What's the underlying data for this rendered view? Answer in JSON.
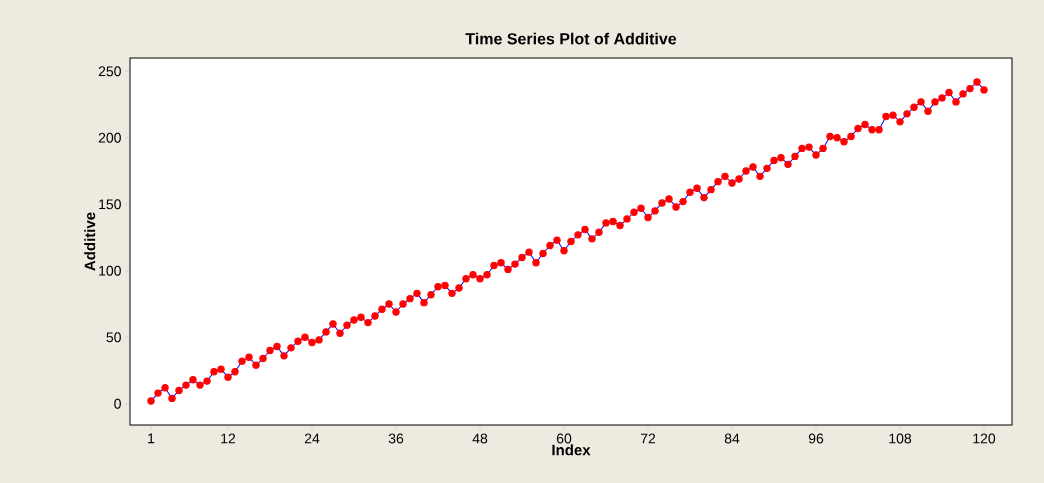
{
  "chart_data": {
    "type": "line",
    "title": "Time Series Plot of Additive",
    "xlabel": "Index",
    "ylabel": "Additive",
    "x": [
      1,
      2,
      3,
      4,
      5,
      6,
      7,
      8,
      9,
      10,
      11,
      12,
      13,
      14,
      15,
      16,
      17,
      18,
      19,
      20,
      21,
      22,
      23,
      24,
      25,
      26,
      27,
      28,
      29,
      30,
      31,
      32,
      33,
      34,
      35,
      36,
      37,
      38,
      39,
      40,
      41,
      42,
      43,
      44,
      45,
      46,
      47,
      48,
      49,
      50,
      51,
      52,
      53,
      54,
      55,
      56,
      57,
      58,
      59,
      60,
      61,
      62,
      63,
      64,
      65,
      66,
      67,
      68,
      69,
      70,
      71,
      72,
      73,
      74,
      75,
      76,
      77,
      78,
      79,
      80,
      81,
      82,
      83,
      84,
      85,
      86,
      87,
      88,
      89,
      90,
      91,
      92,
      93,
      94,
      95,
      96,
      97,
      98,
      99,
      100,
      101,
      102,
      103,
      104,
      105,
      106,
      107,
      108,
      109,
      110,
      111,
      112,
      113,
      114,
      115,
      116,
      117,
      118,
      119,
      120
    ],
    "series": [
      {
        "color": "#ff0000",
        "values": [
          2,
          8,
          12,
          4,
          10,
          14,
          18,
          14,
          17,
          24,
          26,
          20,
          24,
          32,
          35,
          29,
          34,
          40,
          43,
          36,
          42,
          47,
          50,
          46,
          48,
          54,
          60,
          53,
          59,
          63,
          65,
          61,
          66,
          71,
          75,
          69,
          75,
          79,
          83,
          76,
          82,
          88,
          89,
          83,
          87,
          94,
          97,
          94,
          97,
          104,
          106,
          101,
          105,
          110,
          114,
          106,
          113,
          119,
          123,
          115,
          122,
          127,
          131,
          124,
          129,
          136,
          137,
          134,
          139,
          144,
          147,
          140,
          145,
          151,
          154,
          148,
          152,
          159,
          162,
          155,
          161,
          167,
          171,
          166,
          169,
          175,
          178,
          171,
          177,
          183,
          185,
          180,
          186,
          192,
          193,
          187,
          192,
          201,
          200,
          197,
          201,
          207,
          210,
          206,
          206,
          216,
          217,
          212,
          218,
          223,
          227,
          220,
          227,
          230,
          234,
          227,
          233,
          237,
          242,
          236
        ]
      }
    ],
    "xlim": [
      -2,
      124
    ],
    "ylim": [
      -16,
      260
    ],
    "xticks": [
      1,
      12,
      24,
      36,
      48,
      60,
      72,
      84,
      96,
      108,
      120
    ],
    "yticks": [
      0,
      50,
      100,
      150,
      200,
      250
    ],
    "marker": "circle",
    "line_style": "solid"
  }
}
